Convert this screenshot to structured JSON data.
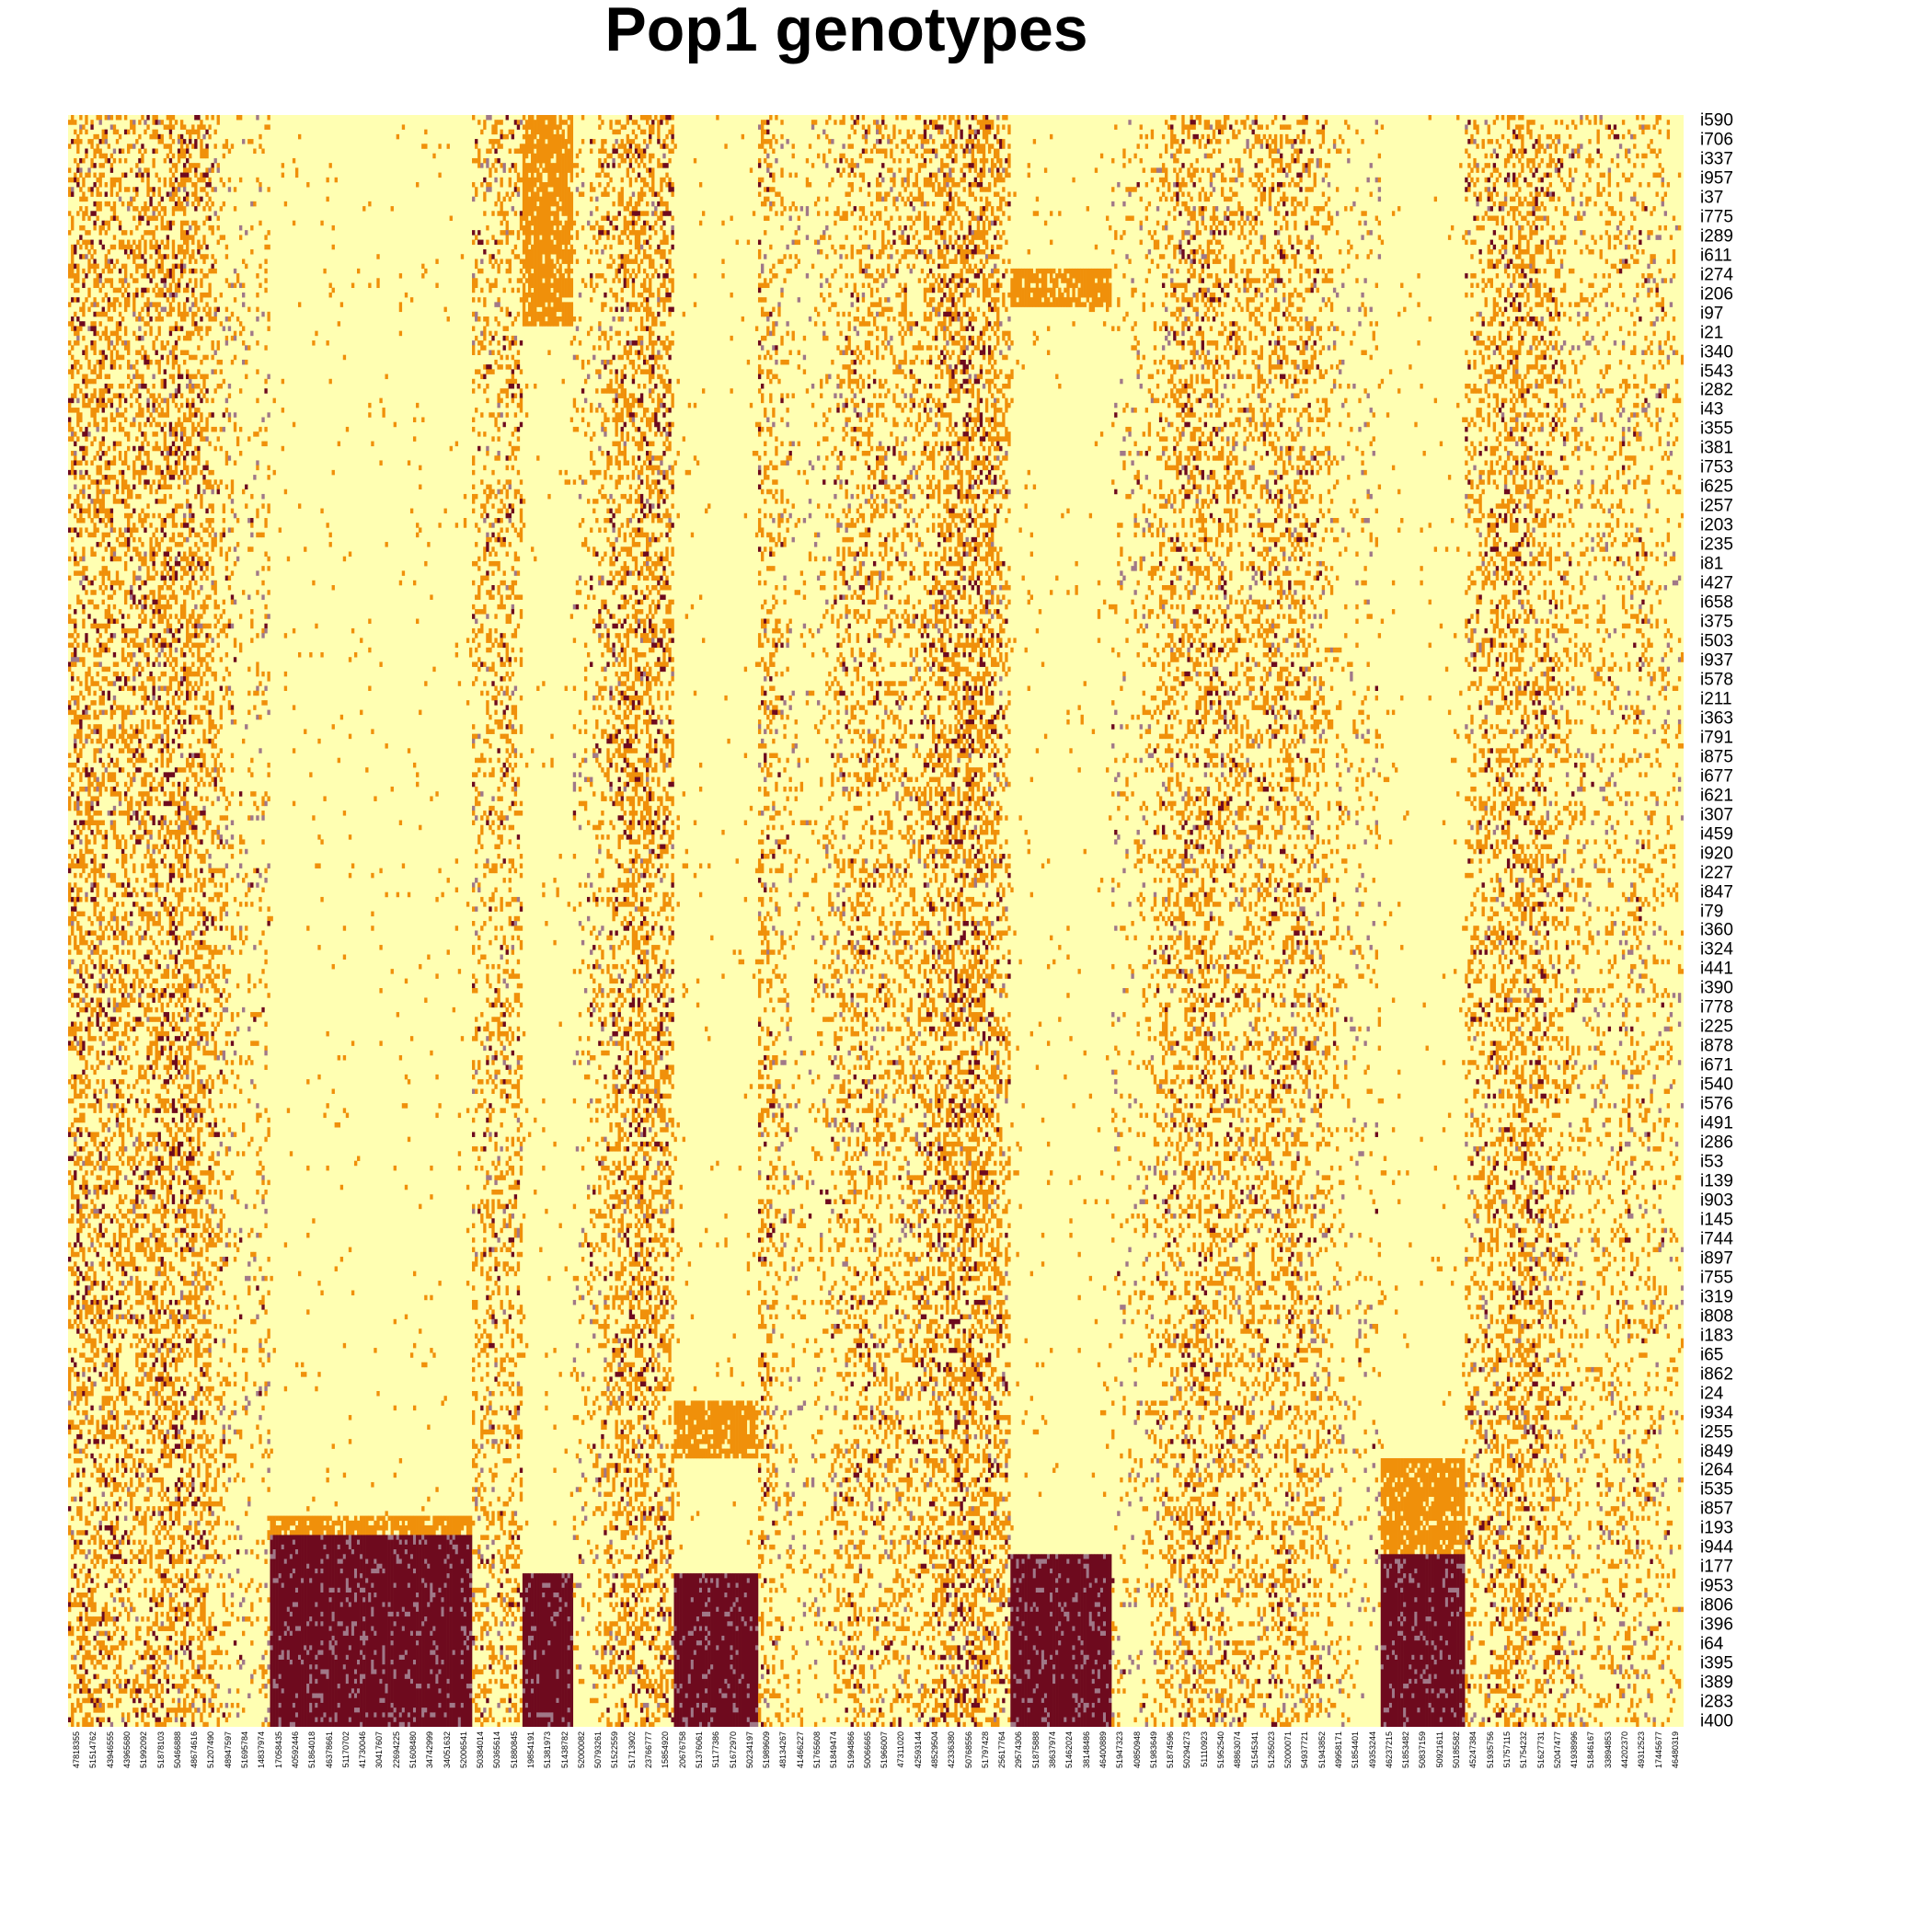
{
  "chart_data": {
    "type": "heatmap",
    "title": "Pop1 genotypes",
    "xlabel": "",
    "ylabel": "",
    "value_levels": [
      0,
      1,
      2
    ],
    "colors": {
      "0": "#ffffb2",
      "1": "#f0900a",
      "2": "#6e0a1e",
      "missing": "#a07888",
      "background": "#ffffff"
    },
    "row_count": 84,
    "column_count": 96,
    "row_labels": [
      "i590",
      "i706",
      "i337",
      "i957",
      "i37",
      "i775",
      "i289",
      "i611",
      "i274",
      "i206",
      "i97",
      "i21",
      "i340",
      "i543",
      "i282",
      "i43",
      "i355",
      "i381",
      "i753",
      "i625",
      "i257",
      "i203",
      "i235",
      "i81",
      "i427",
      "i658",
      "i375",
      "i503",
      "i937",
      "i578",
      "i211",
      "i363",
      "i791",
      "i875",
      "i677",
      "i621",
      "i307",
      "i459",
      "i920",
      "i227",
      "i847",
      "i79",
      "i360",
      "i324",
      "i441",
      "i390",
      "i778",
      "i225",
      "i878",
      "i671",
      "i540",
      "i576",
      "i491",
      "i286",
      "i53",
      "i139",
      "i903",
      "i145",
      "i744",
      "i897",
      "i755",
      "i319",
      "i808",
      "i183",
      "i65",
      "i862",
      "i24",
      "i934",
      "i255",
      "i849",
      "i264",
      "i535",
      "i857",
      "i193",
      "i944",
      "i177",
      "i953",
      "i806",
      "i396",
      "i64",
      "i395",
      "i389",
      "i283",
      "i400"
    ],
    "column_labels": [
      "47818355",
      "51514762",
      "43946555",
      "43965680",
      "51992092",
      "51878103",
      "50466888",
      "48674616",
      "51207490",
      "48947597",
      "51695784",
      "14837974",
      "17058435",
      "40592446",
      "51864018",
      "46378661",
      "51170702",
      "41730046",
      "30417607",
      "22694225",
      "51608480",
      "34742999",
      "34051632",
      "52006541",
      "50384014",
      "50365614",
      "51880845",
      "19854191",
      "51381973",
      "51438782",
      "52000082",
      "50793261",
      "51522559",
      "51713902",
      "23766777",
      "15854920",
      "20676758",
      "51376061",
      "51177386",
      "51672970",
      "50234197",
      "51989609",
      "48134267",
      "41466227",
      "51765608",
      "51849474",
      "51994866",
      "50066665",
      "51966007",
      "47311020",
      "42593144",
      "48529504",
      "42336380",
      "50768556",
      "51797428",
      "25617764",
      "29574306",
      "51875888",
      "38637974",
      "51462024",
      "38148486",
      "46400889",
      "51947323",
      "40850948",
      "51983649",
      "51874596",
      "50294273",
      "51110923",
      "51952540",
      "48863074",
      "51545341",
      "51265023",
      "52000071",
      "54937721",
      "51943852",
      "49958171",
      "51854401",
      "49353244",
      "46237215",
      "51853482",
      "50837159",
      "50921611",
      "50185582",
      "45247384",
      "51935756",
      "51757115",
      "51754232",
      "51627731",
      "52047477",
      "41938996",
      "51846167",
      "33894853",
      "44202370",
      "49312523",
      "17445677",
      "46480319"
    ],
    "blocks": [
      {
        "name": "block-a",
        "cols": [
          12,
          24
        ],
        "rows": [
          74,
          84
        ],
        "value": 2
      },
      {
        "name": "block-a-het",
        "cols": [
          12,
          24
        ],
        "rows": [
          73,
          74
        ],
        "value": 1
      },
      {
        "name": "block-b",
        "cols": [
          27,
          30
        ],
        "rows": [
          76,
          84
        ],
        "value": 2
      },
      {
        "name": "block-b-het-top",
        "cols": [
          27,
          30
        ],
        "rows": [
          0,
          11
        ],
        "value": 1
      },
      {
        "name": "block-c",
        "cols": [
          36,
          41
        ],
        "rows": [
          76,
          84
        ],
        "value": 2
      },
      {
        "name": "block-c-het",
        "cols": [
          36,
          41
        ],
        "rows": [
          67,
          70
        ],
        "value": 1
      },
      {
        "name": "block-d",
        "cols": [
          56,
          62
        ],
        "rows": [
          75,
          84
        ],
        "value": 2
      },
      {
        "name": "block-d-het-top",
        "cols": [
          56,
          62
        ],
        "rows": [
          8,
          10
        ],
        "value": 1
      },
      {
        "name": "block-e",
        "cols": [
          78,
          83
        ],
        "rows": [
          75,
          84
        ],
        "value": 2
      },
      {
        "name": "block-e-het",
        "cols": [
          78,
          83
        ],
        "rows": [
          70,
          75
        ],
        "value": 1
      }
    ],
    "legend": false,
    "grid": false
  }
}
